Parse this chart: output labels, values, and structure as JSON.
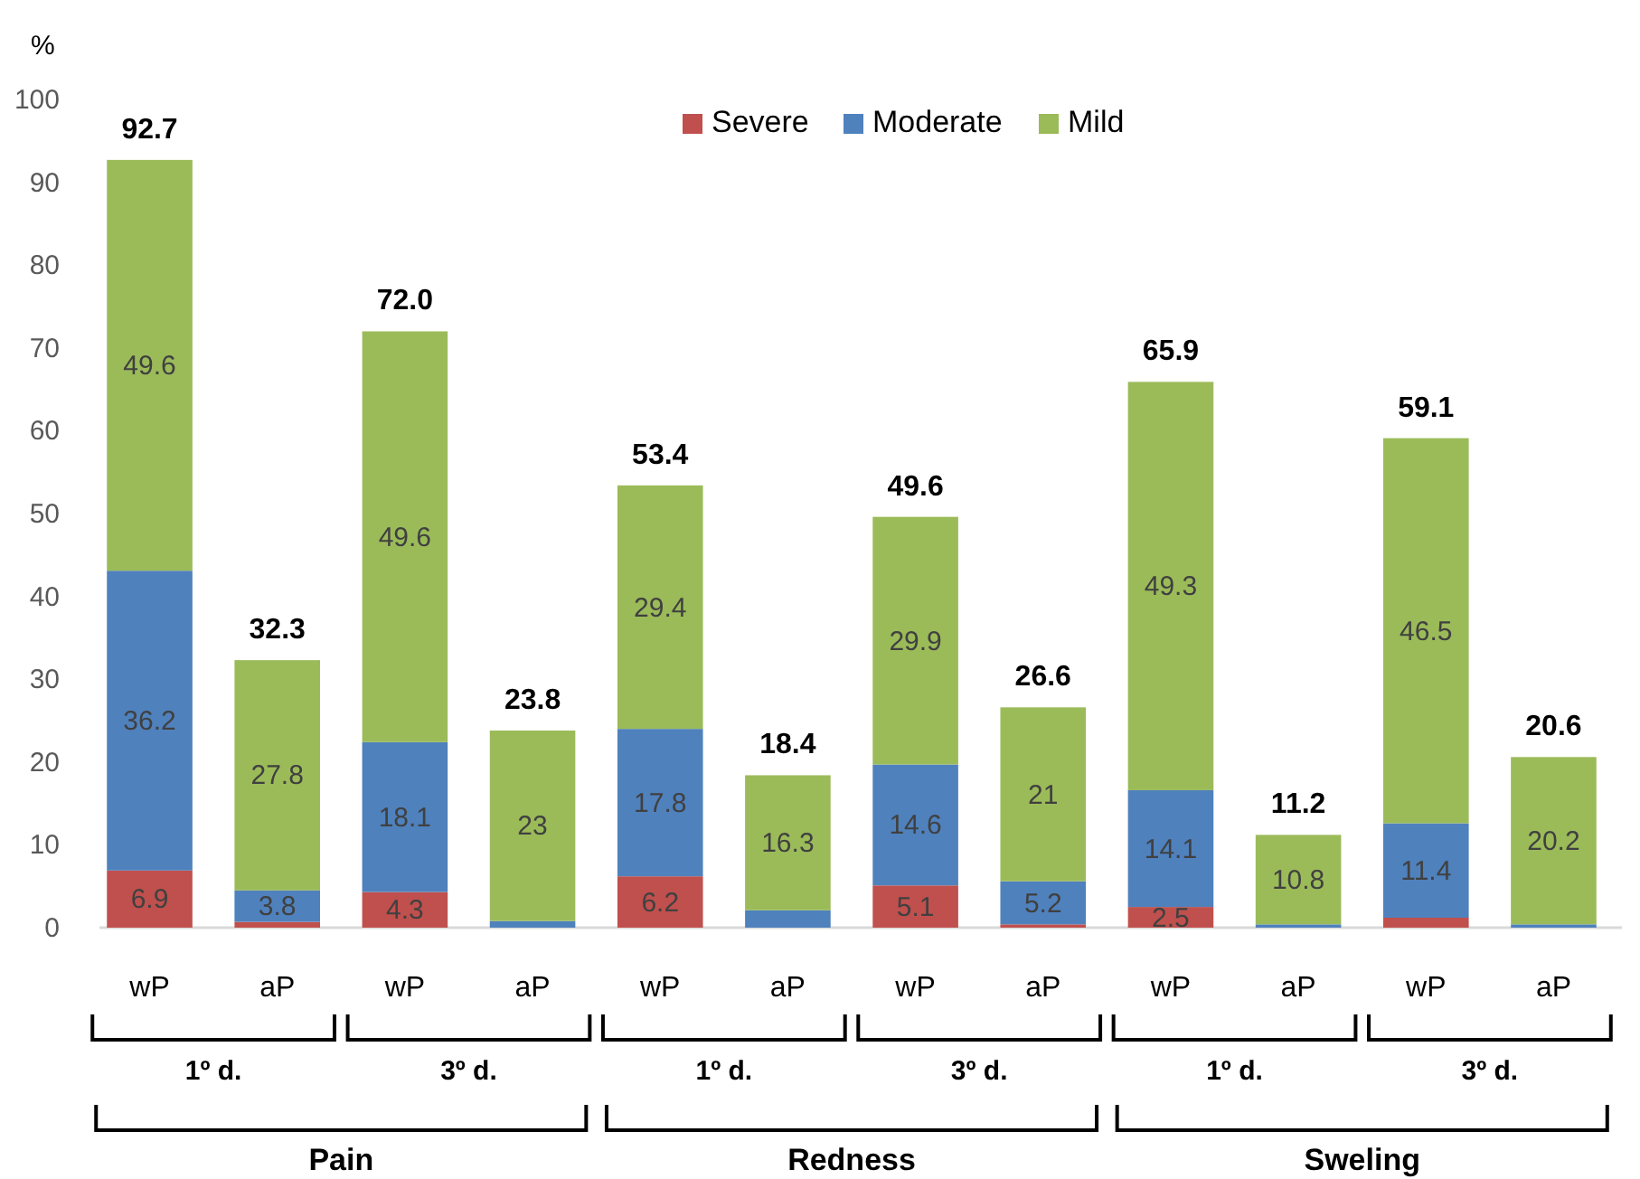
{
  "chart_data": {
    "type": "bar",
    "stacked": true,
    "ylabel": "%",
    "categories": [
      "wP",
      "aP",
      "wP",
      "aP",
      "wP",
      "aP",
      "wP",
      "aP",
      "wP",
      "aP",
      "wP",
      "aP"
    ],
    "series": [
      {
        "name": "Severe",
        "color": "#c0504d",
        "values": [
          6.9,
          0.7,
          4.3,
          0,
          6.2,
          0,
          5.1,
          0.4,
          2.5,
          0,
          1.2,
          0
        ],
        "value_labels": [
          "6.9",
          null,
          "4.3",
          null,
          "6.2",
          null,
          "5.1",
          null,
          "2.5",
          null,
          null,
          null
        ]
      },
      {
        "name": "Moderate",
        "color": "#4f81bd",
        "values": [
          36.2,
          3.8,
          18.1,
          0.8,
          17.8,
          2.1,
          14.6,
          5.2,
          14.1,
          0.4,
          11.4,
          0.4
        ],
        "value_labels": [
          "36.2",
          "3.8",
          "18.1",
          null,
          "17.8",
          null,
          "14.6",
          "5.2",
          "14.1",
          null,
          "11.4",
          null
        ]
      },
      {
        "name": "Mild",
        "color": "#9bbb59",
        "values": [
          49.6,
          27.8,
          49.6,
          23,
          29.4,
          16.3,
          29.9,
          21,
          49.3,
          10.8,
          46.5,
          20.2
        ],
        "value_labels": [
          "49.6",
          "27.8",
          "49.6",
          "23",
          "29.4",
          "16.3",
          "29.9",
          "21",
          "49.3",
          "10.8",
          "46.5",
          "20.2"
        ]
      }
    ],
    "totals": [
      "92.7",
      "32.3",
      "72.0",
      "23.8",
      "53.4",
      "18.4",
      "49.6",
      "26.6",
      "65.9",
      "11.2",
      "59.1",
      "20.6"
    ],
    "ylim": [
      0,
      100
    ],
    "yticks": [
      0,
      10,
      20,
      30,
      40,
      50,
      60,
      70,
      80,
      90,
      100
    ],
    "grid": false,
    "legend": "top",
    "annotations": [
      "1º d.",
      "3º d.",
      "1º d.",
      "3º d.",
      "1º d.",
      "3º d.",
      "Pain",
      "Redness",
      "Sweling"
    ]
  }
}
